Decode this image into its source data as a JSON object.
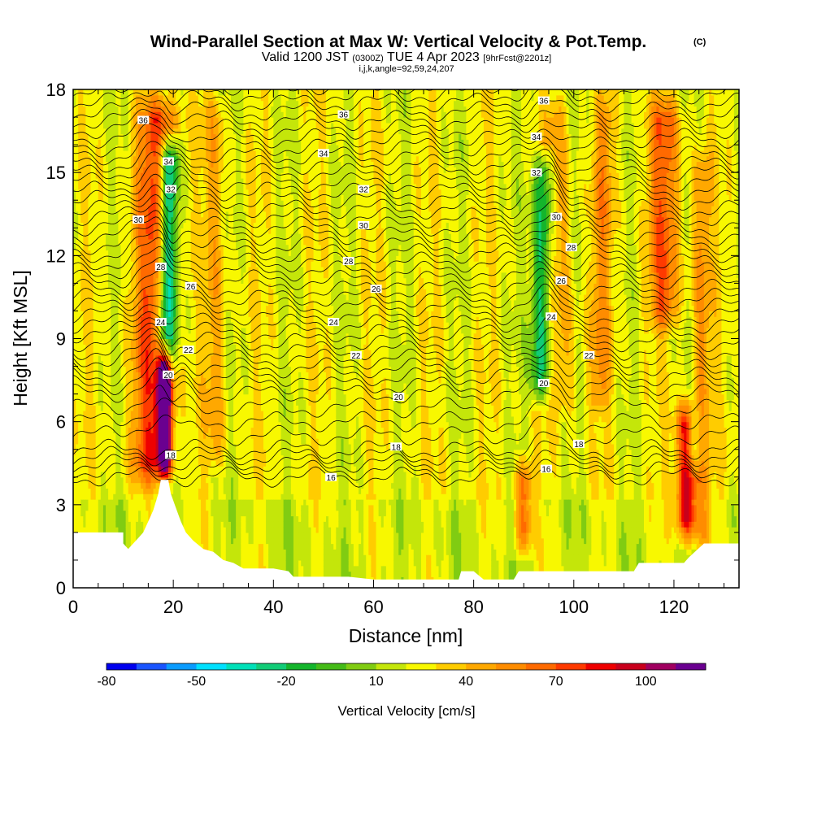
{
  "header": {
    "title": "Wind-Parallel Section at Max W: Vertical Velocity & Pot.Temp.",
    "copyright": "(C)",
    "valid_prefix": "Valid 1200 JST",
    "valid_utc": "(0300Z)",
    "valid_date": "TUE 4 Apr 2023",
    "forecast": "[9hrFcst@2201z]",
    "grid_info": "i,j,k,angle=92,59,24,207"
  },
  "colors": {
    "background": "#ffffff",
    "terrain": "#ffffff",
    "contour": "#000000"
  },
  "chart_data": {
    "type": "heatmap",
    "xlabel": "Distance [nm]",
    "ylabel": "Height [Kft MSL]",
    "xlim": [
      0,
      133
    ],
    "ylim": [
      0,
      18
    ],
    "x_ticks": [
      0,
      20,
      40,
      60,
      80,
      100,
      120
    ],
    "y_ticks": [
      0,
      3,
      6,
      9,
      12,
      15,
      18
    ],
    "colorbar": {
      "title": "Vertical Velocity [cm/s]",
      "tick_labels": [
        "-80",
        "-50",
        "-20",
        "10",
        "40",
        "70",
        "100"
      ],
      "colors": [
        "#0000ee",
        "#1a55ff",
        "#0a9cff",
        "#00e0ff",
        "#00e0b8",
        "#11cc77",
        "#14b52c",
        "#44bb18",
        "#80cc12",
        "#c4e60a",
        "#f8f800",
        "#ffcc00",
        "#ffa800",
        "#ff8c00",
        "#ff6a00",
        "#ff3a00",
        "#ee0000",
        "#c8001c",
        "#a00060",
        "#6a0090"
      ]
    },
    "updraft_bands": [
      {
        "x": 15.5,
        "width": 2.8,
        "z_bottom": 3.5,
        "z_top": 18,
        "peak": 50,
        "lean": 0.11
      },
      {
        "x": 18.3,
        "width": 1.0,
        "z_bottom": 3.8,
        "z_top": 9,
        "peak": 110,
        "lean": 0.0
      },
      {
        "x": 28.5,
        "width": 1.5,
        "z_bottom": 4,
        "z_top": 18,
        "peak": 20,
        "lean": 0.0
      },
      {
        "x": 90.0,
        "width": 1.2,
        "z_bottom": 1,
        "z_top": 5,
        "peak": 45,
        "lean": 0.0
      },
      {
        "x": 98.5,
        "width": 1.6,
        "z_bottom": 6,
        "z_top": 18,
        "peak": 22,
        "lean": -0.15
      },
      {
        "x": 105.0,
        "width": 1.5,
        "z_bottom": 6,
        "z_top": 18,
        "peak": 25,
        "lean": 0.1
      },
      {
        "x": 118.0,
        "width": 2.2,
        "z_bottom": 9,
        "z_top": 18,
        "peak": 40,
        "lean": 0.0
      },
      {
        "x": 122.5,
        "width": 1.4,
        "z_bottom": 1.5,
        "z_top": 7,
        "peak": 75,
        "lean": 0.0
      },
      {
        "x": 125.5,
        "width": 1.3,
        "z_bottom": 1,
        "z_top": 16,
        "peak": 28,
        "lean": 0.0
      }
    ],
    "downdraft_bands": [
      {
        "x": 18.5,
        "width": 1.4,
        "z_bottom": 7.5,
        "z_top": 16.5,
        "peak": -60,
        "lean": 0.09
      },
      {
        "x": 93.0,
        "width": 1.4,
        "z_bottom": 6.5,
        "z_top": 16,
        "peak": -35,
        "lean": 0.12
      },
      {
        "x": 124.0,
        "width": 1.3,
        "z_bottom": 4,
        "z_top": 7,
        "peak": -25,
        "lean": 0.0
      }
    ],
    "terrain": [
      [
        0,
        1.6
      ],
      [
        0,
        2.0
      ],
      [
        10,
        2.0
      ],
      [
        10,
        1.6
      ],
      [
        11,
        1.4
      ],
      [
        12,
        1.6
      ],
      [
        13,
        1.8
      ],
      [
        14,
        2.0
      ],
      [
        15,
        2.4
      ],
      [
        16,
        2.8
      ],
      [
        17,
        3.4
      ],
      [
        17.5,
        3.9
      ],
      [
        19,
        3.9
      ],
      [
        19.5,
        3.4
      ],
      [
        20.5,
        2.9
      ],
      [
        21.5,
        2.4
      ],
      [
        22.5,
        2.0
      ],
      [
        24,
        1.7
      ],
      [
        26,
        1.4
      ],
      [
        28,
        1.3
      ],
      [
        30,
        1.0
      ],
      [
        32,
        0.9
      ],
      [
        34,
        0.7
      ],
      [
        38,
        0.7
      ],
      [
        40,
        0.7
      ],
      [
        43,
        0.6
      ],
      [
        44,
        0.4
      ],
      [
        55,
        0.4
      ],
      [
        60,
        0.3
      ],
      [
        65,
        0.3
      ],
      [
        70,
        0.3
      ],
      [
        77,
        0.3
      ],
      [
        77.5,
        0.6
      ],
      [
        80,
        0.6
      ],
      [
        82,
        0.3
      ],
      [
        88,
        0.3
      ],
      [
        89,
        0.6
      ],
      [
        100,
        0.6
      ],
      [
        112,
        0.6
      ],
      [
        113,
        0.9
      ],
      [
        122,
        0.9
      ],
      [
        123,
        1.1
      ],
      [
        126,
        1.6
      ],
      [
        133,
        1.6
      ]
    ],
    "theta_contours": {
      "levels": [
        16,
        18,
        20,
        22,
        24,
        26,
        28,
        30,
        32,
        34,
        36
      ],
      "labels": [
        {
          "text": "36",
          "x": 14.0,
          "z": 16.9
        },
        {
          "text": "34",
          "x": 19.0,
          "z": 15.4
        },
        {
          "text": "32",
          "x": 19.5,
          "z": 14.4
        },
        {
          "text": "30",
          "x": 13.0,
          "z": 13.3
        },
        {
          "text": "28",
          "x": 17.5,
          "z": 11.6
        },
        {
          "text": "26",
          "x": 23.5,
          "z": 10.9
        },
        {
          "text": "24",
          "x": 17.5,
          "z": 9.6
        },
        {
          "text": "22",
          "x": 23.0,
          "z": 8.6
        },
        {
          "text": "20",
          "x": 19.0,
          "z": 7.7
        },
        {
          "text": "18",
          "x": 19.5,
          "z": 4.8
        },
        {
          "text": "36",
          "x": 54.0,
          "z": 17.1
        },
        {
          "text": "34",
          "x": 50.0,
          "z": 15.7
        },
        {
          "text": "32",
          "x": 58.0,
          "z": 14.4
        },
        {
          "text": "30",
          "x": 58.0,
          "z": 13.1
        },
        {
          "text": "28",
          "x": 55.0,
          "z": 11.8
        },
        {
          "text": "26",
          "x": 60.5,
          "z": 10.8
        },
        {
          "text": "24",
          "x": 52.0,
          "z": 9.6
        },
        {
          "text": "22",
          "x": 56.5,
          "z": 8.4
        },
        {
          "text": "20",
          "x": 65.0,
          "z": 6.9
        },
        {
          "text": "18",
          "x": 64.5,
          "z": 5.1
        },
        {
          "text": "16",
          "x": 51.5,
          "z": 4.0
        },
        {
          "text": "36",
          "x": 94.0,
          "z": 17.6
        },
        {
          "text": "34",
          "x": 92.5,
          "z": 16.3
        },
        {
          "text": "32",
          "x": 92.5,
          "z": 15.0
        },
        {
          "text": "30",
          "x": 96.5,
          "z": 13.4
        },
        {
          "text": "28",
          "x": 99.5,
          "z": 12.3
        },
        {
          "text": "26",
          "x": 97.5,
          "z": 11.1
        },
        {
          "text": "24",
          "x": 95.5,
          "z": 9.8
        },
        {
          "text": "22",
          "x": 103.0,
          "z": 8.4
        },
        {
          "text": "20",
          "x": 94.0,
          "z": 7.4
        },
        {
          "text": "18",
          "x": 101.0,
          "z": 5.2
        },
        {
          "text": "16",
          "x": 94.5,
          "z": 4.3
        }
      ]
    }
  }
}
